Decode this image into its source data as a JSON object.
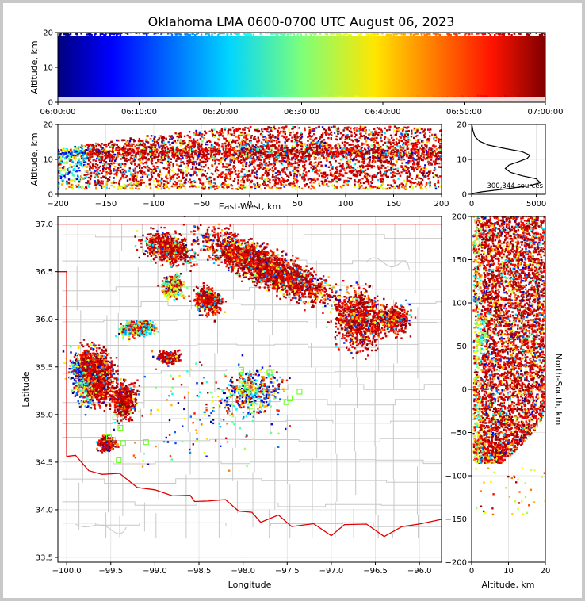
{
  "title": "Oklahoma LMA 0600-0700 UTC August 06, 2023",
  "chart_data": [
    {
      "type": "scatter",
      "panel": "time-height",
      "ylabel": "Altitude, km",
      "ylim": [
        0,
        20
      ],
      "x_ticks": [
        "06:00:00",
        "06:10:00",
        "06:20:00",
        "06:30:00",
        "06:40:00",
        "06:50:00",
        "07:00:00"
      ],
      "y_ticks": [
        "0",
        "10",
        "20"
      ],
      "color_by": "time",
      "colormap": "jet"
    },
    {
      "type": "scatter",
      "panel": "east-west-altitude",
      "xlabel": "East-West, km",
      "ylabel": "Altitude, km",
      "xlim": [
        -200,
        200
      ],
      "ylim": [
        0,
        20
      ],
      "x_ticks": [
        "−200",
        "−150",
        "−100",
        "−50",
        "0",
        "50",
        "100",
        "150",
        "200"
      ],
      "y_ticks": [
        "0",
        "10",
        "20"
      ]
    },
    {
      "type": "line",
      "panel": "altitude-histogram",
      "x_ticks": [
        "0",
        "5000"
      ],
      "y_ticks": [
        "0",
        "10",
        "20"
      ],
      "annotation": "300,344 sources",
      "profile": [
        {
          "count": 0,
          "alt": 0.2
        },
        {
          "count": 800,
          "alt": 0.7
        },
        {
          "count": 2600,
          "alt": 1.5
        },
        {
          "count": 4400,
          "alt": 2.4
        },
        {
          "count": 5300,
          "alt": 3.3
        },
        {
          "count": 5000,
          "alt": 4.4
        },
        {
          "count": 3900,
          "alt": 5.3
        },
        {
          "count": 3000,
          "alt": 6.3
        },
        {
          "count": 2600,
          "alt": 7.4
        },
        {
          "count": 2900,
          "alt": 8.4
        },
        {
          "count": 3600,
          "alt": 9.3
        },
        {
          "count": 4300,
          "alt": 10.3
        },
        {
          "count": 4500,
          "alt": 11.2
        },
        {
          "count": 3900,
          "alt": 12.2
        },
        {
          "count": 2600,
          "alt": 13.1
        },
        {
          "count": 1300,
          "alt": 14.1
        },
        {
          "count": 600,
          "alt": 15.2
        },
        {
          "count": 250,
          "alt": 16.6
        },
        {
          "count": 100,
          "alt": 18.3
        },
        {
          "count": 40,
          "alt": 19.6
        }
      ]
    },
    {
      "type": "scatter",
      "panel": "plan-view",
      "xlabel": "Longitude",
      "ylabel": "Latitude",
      "xlim": [
        -100.1,
        -95.75
      ],
      "ylim": [
        33.45,
        37.08
      ],
      "x_ticks": [
        "−100.0",
        "−99.5",
        "−99.0",
        "−98.5",
        "−98.0",
        "−97.5",
        "−97.0",
        "−96.5",
        "−96.0"
      ],
      "y_ticks": [
        "33.5",
        "34.0",
        "34.5",
        "35.0",
        "35.5",
        "36.0",
        "36.5",
        "37.0"
      ],
      "stations": [
        {
          "lon": -99.45,
          "lat": 34.97
        },
        {
          "lon": -99.39,
          "lat": 34.86
        },
        {
          "lon": -99.52,
          "lat": 34.76
        },
        {
          "lon": -99.36,
          "lat": 34.7
        },
        {
          "lon": -99.41,
          "lat": 34.52
        },
        {
          "lon": -99.1,
          "lat": 34.71
        },
        {
          "lon": -98.02,
          "lat": 35.47
        },
        {
          "lon": -97.7,
          "lat": 35.44
        },
        {
          "lon": -97.95,
          "lat": 35.28
        },
        {
          "lon": -97.9,
          "lat": 35.04
        },
        {
          "lon": -97.51,
          "lat": 35.13
        },
        {
          "lon": -97.47,
          "lat": 35.17
        },
        {
          "lon": -97.36,
          "lat": 35.24
        }
      ]
    },
    {
      "type": "scatter",
      "panel": "altitude-north-south",
      "xlabel": "Altitude, km",
      "ylabel": "North-South, km",
      "xlim": [
        0,
        20
      ],
      "ylim": [
        -200,
        200
      ],
      "x_ticks": [
        "0",
        "10",
        "20"
      ],
      "y_ticks": [
        "−200",
        "−150",
        "−100",
        "−50",
        "0",
        "50",
        "100",
        "150",
        "200"
      ]
    }
  ]
}
